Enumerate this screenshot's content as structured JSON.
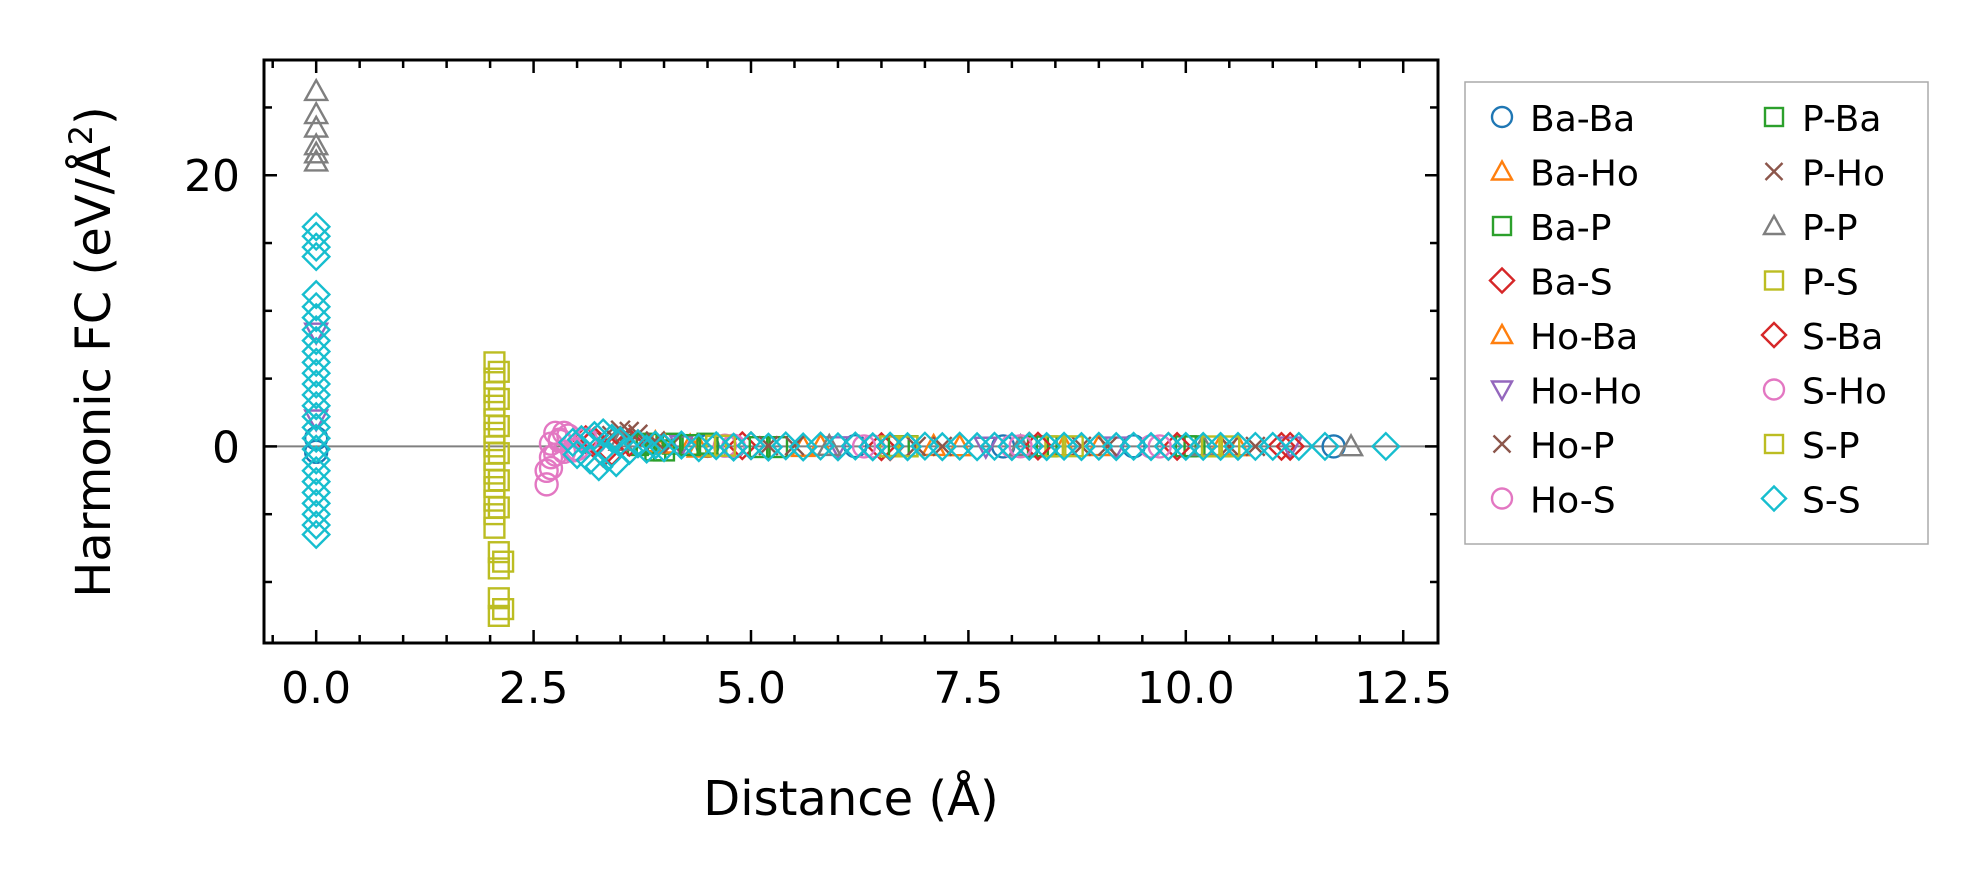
{
  "chart_data": {
    "type": "scatter",
    "title": "",
    "xlabel": "Distance (Å)",
    "ylabel": "Harmonic FC (eV/Å²)",
    "ylabel_parts": {
      "main": "Harmonic FC (eV/Å",
      "sup": "2",
      "close": ")"
    },
    "xlim": [
      -0.6,
      12.9
    ],
    "ylim": [
      -14.5,
      28.5
    ],
    "xticks": [
      0.0,
      2.5,
      5.0,
      7.5,
      10.0,
      12.5
    ],
    "xtick_labels": [
      "0.0",
      "2.5",
      "5.0",
      "7.5",
      "10.0",
      "12.5"
    ],
    "yticks": [
      0,
      20
    ],
    "ytick_labels": [
      "0",
      "20"
    ],
    "grid": false,
    "zero_line": true,
    "legend_position": "outside-right",
    "series": [
      {
        "name": "Ba-Ba",
        "marker": "circle",
        "color": "#1f77b4",
        "points": [
          [
            0.0,
            0.6
          ],
          [
            0.0,
            -0.4
          ],
          [
            4.5,
            0.04
          ],
          [
            4.8,
            -0.02
          ],
          [
            6.2,
            0.02
          ],
          [
            7.9,
            0.0
          ],
          [
            9.4,
            0.01
          ],
          [
            11.7,
            0.0
          ]
        ]
      },
      {
        "name": "Ba-Ho",
        "marker": "triangle-up",
        "color": "#ff7f0e",
        "points": [
          [
            3.9,
            0.3
          ],
          [
            4.3,
            0.05
          ],
          [
            5.6,
            -0.05
          ],
          [
            7.1,
            0.02
          ],
          [
            8.6,
            0.0
          ],
          [
            10.4,
            0.01
          ]
        ]
      },
      {
        "name": "Ba-P",
        "marker": "square",
        "color": "#2ca02c",
        "points": [
          [
            3.7,
            0.1
          ],
          [
            3.9,
            -0.3
          ],
          [
            4.1,
            0.2
          ],
          [
            4.6,
            0.05
          ],
          [
            5.3,
            -0.05
          ],
          [
            6.8,
            0.02
          ],
          [
            8.4,
            0.0
          ],
          [
            10.1,
            0.01
          ]
        ]
      },
      {
        "name": "Ba-S",
        "marker": "diamond",
        "color": "#d62728",
        "points": [
          [
            3.1,
            0.5
          ],
          [
            3.3,
            -0.5
          ],
          [
            3.6,
            0.3
          ],
          [
            4.9,
            0.05
          ],
          [
            6.5,
            -0.02
          ],
          [
            8.2,
            0.02
          ],
          [
            9.8,
            0.0
          ],
          [
            11.1,
            0.0
          ]
        ]
      },
      {
        "name": "Ho-Ba",
        "marker": "triangle-up",
        "color": "#ff7f0e",
        "points": [
          [
            4.0,
            0.2
          ],
          [
            4.4,
            -0.1
          ],
          [
            5.8,
            0.03
          ],
          [
            7.4,
            0.0
          ],
          [
            9.0,
            0.01
          ],
          [
            10.6,
            0.0
          ]
        ]
      },
      {
        "name": "Ho-Ho",
        "marker": "triangle-down",
        "color": "#9467bd",
        "points": [
          [
            0.0,
            8.4
          ],
          [
            0.0,
            2.0
          ],
          [
            4.2,
            0.1
          ],
          [
            6.0,
            0.02
          ],
          [
            7.7,
            -0.01
          ],
          [
            9.2,
            0.0
          ],
          [
            11.2,
            0.0
          ]
        ]
      },
      {
        "name": "Ho-P",
        "marker": "x",
        "color": "#8c564b",
        "points": [
          [
            3.3,
            0.6
          ],
          [
            3.5,
            1.2
          ],
          [
            3.7,
            0.9
          ],
          [
            4.1,
            0.2
          ],
          [
            5.5,
            0.05
          ],
          [
            7.2,
            0.0
          ],
          [
            9.1,
            0.01
          ],
          [
            10.8,
            0.0
          ]
        ]
      },
      {
        "name": "Ho-S",
        "marker": "circle",
        "color": "#e377c2",
        "points": [
          [
            2.65,
            -2.8
          ],
          [
            2.65,
            -1.8
          ],
          [
            2.7,
            -0.8
          ],
          [
            2.7,
            0.2
          ],
          [
            2.75,
            1.0
          ],
          [
            2.8,
            0.5
          ],
          [
            2.85,
            -0.4
          ],
          [
            2.9,
            0.8
          ],
          [
            3.0,
            -0.2
          ],
          [
            3.2,
            0.3
          ],
          [
            4.7,
            0.05
          ],
          [
            6.4,
            0.0
          ],
          [
            8.0,
            0.01
          ],
          [
            9.6,
            0.0
          ]
        ]
      },
      {
        "name": "P-Ba",
        "marker": "square",
        "color": "#2ca02c",
        "points": [
          [
            3.8,
            0.2
          ],
          [
            4.0,
            -0.3
          ],
          [
            4.3,
            0.1
          ],
          [
            4.5,
            0.2
          ],
          [
            5.1,
            -0.05
          ],
          [
            6.7,
            0.02
          ],
          [
            8.3,
            0.0
          ],
          [
            10.0,
            0.01
          ]
        ]
      },
      {
        "name": "P-Ho",
        "marker": "x",
        "color": "#8c564b",
        "points": [
          [
            3.4,
            0.8
          ],
          [
            3.6,
            1.1
          ],
          [
            3.9,
            0.4
          ],
          [
            5.2,
            0.05
          ],
          [
            6.9,
            0.0
          ],
          [
            8.8,
            0.01
          ],
          [
            10.5,
            0.0
          ]
        ]
      },
      {
        "name": "P-P",
        "marker": "triangle-up",
        "color": "#7f7f7f",
        "points": [
          [
            0.0,
            21.0
          ],
          [
            0.0,
            21.6
          ],
          [
            0.0,
            22.2
          ],
          [
            0.0,
            23.5
          ],
          [
            0.0,
            24.5
          ],
          [
            0.0,
            26.2
          ],
          [
            3.5,
            0.4
          ],
          [
            5.9,
            0.02
          ],
          [
            8.1,
            0.0
          ],
          [
            10.2,
            0.01
          ],
          [
            11.9,
            0.0
          ]
        ]
      },
      {
        "name": "P-S",
        "marker": "square",
        "color": "#bcbd22",
        "points": [
          [
            2.05,
            6.2
          ],
          [
            2.05,
            5.0
          ],
          [
            2.05,
            4.0
          ],
          [
            2.05,
            3.0
          ],
          [
            2.05,
            2.0
          ],
          [
            2.05,
            1.0
          ],
          [
            2.05,
            0.0
          ],
          [
            2.05,
            -1.0
          ],
          [
            2.05,
            -2.0
          ],
          [
            2.05,
            -3.0
          ],
          [
            2.05,
            -4.0
          ],
          [
            2.05,
            -5.0
          ],
          [
            2.05,
            -6.0
          ],
          [
            2.1,
            -7.8
          ],
          [
            2.1,
            -9.0
          ],
          [
            2.1,
            -11.2
          ],
          [
            2.1,
            -12.5
          ],
          [
            4.6,
            0.05
          ],
          [
            6.6,
            0.0
          ],
          [
            8.5,
            0.01
          ],
          [
            10.3,
            0.0
          ]
        ]
      },
      {
        "name": "S-Ba",
        "marker": "diamond",
        "color": "#d62728",
        "points": [
          [
            3.2,
            0.4
          ],
          [
            3.4,
            -0.4
          ],
          [
            3.7,
            0.2
          ],
          [
            5.0,
            0.05
          ],
          [
            6.6,
            -0.02
          ],
          [
            8.3,
            0.02
          ],
          [
            9.9,
            0.0
          ],
          [
            11.2,
            0.0
          ]
        ]
      },
      {
        "name": "S-Ho",
        "marker": "circle",
        "color": "#e377c2",
        "points": [
          [
            2.7,
            -1.6
          ],
          [
            2.75,
            -0.6
          ],
          [
            2.8,
            0.4
          ],
          [
            2.85,
            1.0
          ],
          [
            2.95,
            -0.3
          ],
          [
            3.1,
            0.5
          ],
          [
            4.8,
            0.05
          ],
          [
            6.3,
            0.0
          ],
          [
            8.1,
            0.01
          ],
          [
            9.7,
            0.0
          ]
        ]
      },
      {
        "name": "S-P",
        "marker": "square",
        "color": "#bcbd22",
        "points": [
          [
            2.1,
            5.5
          ],
          [
            2.1,
            3.5
          ],
          [
            2.1,
            1.5
          ],
          [
            2.1,
            -0.5
          ],
          [
            2.1,
            -2.5
          ],
          [
            2.1,
            -4.5
          ],
          [
            2.15,
            -8.5
          ],
          [
            2.15,
            -12.0
          ],
          [
            4.7,
            0.05
          ],
          [
            6.8,
            0.0
          ],
          [
            8.7,
            0.01
          ],
          [
            10.5,
            0.0
          ]
        ]
      },
      {
        "name": "S-S",
        "marker": "diamond",
        "color": "#17becf",
        "points": [
          [
            0.0,
            16.2
          ],
          [
            0.0,
            15.5
          ],
          [
            0.0,
            14.7
          ],
          [
            0.0,
            14.0
          ],
          [
            0.0,
            11.2
          ],
          [
            0.0,
            10.3
          ],
          [
            0.0,
            9.5
          ],
          [
            0.0,
            8.6
          ],
          [
            0.0,
            7.8
          ],
          [
            0.0,
            7.0
          ],
          [
            0.0,
            6.2
          ],
          [
            0.0,
            5.4
          ],
          [
            0.0,
            4.6
          ],
          [
            0.0,
            3.8
          ],
          [
            0.0,
            3.0
          ],
          [
            0.0,
            2.2
          ],
          [
            0.0,
            1.4
          ],
          [
            0.0,
            0.6
          ],
          [
            0.0,
            -0.2
          ],
          [
            0.0,
            -1.0
          ],
          [
            0.0,
            -1.8
          ],
          [
            0.0,
            -2.6
          ],
          [
            0.0,
            -3.4
          ],
          [
            0.0,
            -4.2
          ],
          [
            0.0,
            -5.0
          ],
          [
            0.0,
            -5.8
          ],
          [
            0.0,
            -6.5
          ],
          [
            2.95,
            0.3
          ],
          [
            3.0,
            -0.6
          ],
          [
            3.05,
            0.5
          ],
          [
            3.15,
            -1.0
          ],
          [
            3.2,
            0.8
          ],
          [
            3.25,
            -1.5
          ],
          [
            3.3,
            1.0
          ],
          [
            3.35,
            -0.8
          ],
          [
            3.4,
            0.6
          ],
          [
            3.45,
            -1.2
          ],
          [
            3.5,
            0.4
          ],
          [
            3.6,
            -0.3
          ],
          [
            3.7,
            0.2
          ],
          [
            3.8,
            -0.2
          ],
          [
            3.9,
            0.1
          ],
          [
            4.0,
            -0.1
          ],
          [
            4.2,
            0.1
          ],
          [
            4.4,
            -0.1
          ],
          [
            4.6,
            0.05
          ],
          [
            4.8,
            -0.05
          ],
          [
            5.0,
            0.05
          ],
          [
            5.2,
            -0.05
          ],
          [
            5.4,
            0.04
          ],
          [
            5.6,
            -0.04
          ],
          [
            5.8,
            0.03
          ],
          [
            6.0,
            -0.03
          ],
          [
            6.2,
            0.03
          ],
          [
            6.4,
            -0.03
          ],
          [
            6.6,
            0.02
          ],
          [
            6.8,
            -0.02
          ],
          [
            7.0,
            0.02
          ],
          [
            7.2,
            -0.02
          ],
          [
            7.4,
            0.02
          ],
          [
            7.6,
            -0.02
          ],
          [
            7.8,
            0.01
          ],
          [
            8.0,
            -0.01
          ],
          [
            8.2,
            0.01
          ],
          [
            8.4,
            -0.01
          ],
          [
            8.6,
            0.01
          ],
          [
            8.8,
            -0.01
          ],
          [
            9.0,
            0.01
          ],
          [
            9.2,
            -0.01
          ],
          [
            9.4,
            0.01
          ],
          [
            9.6,
            -0.01
          ],
          [
            9.8,
            0.0
          ],
          [
            10.0,
            0.0
          ],
          [
            10.2,
            0.0
          ],
          [
            10.4,
            0.0
          ],
          [
            10.6,
            0.0
          ],
          [
            10.8,
            0.0
          ],
          [
            11.0,
            0.0
          ],
          [
            11.3,
            0.0
          ],
          [
            11.6,
            0.0
          ],
          [
            12.3,
            0.0
          ]
        ]
      }
    ]
  }
}
